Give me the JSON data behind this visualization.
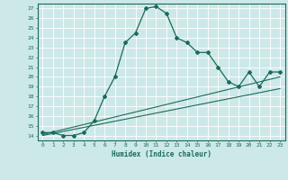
{
  "xlabel": "Humidex (Indice chaleur)",
  "ylabel": "",
  "xlim": [
    -0.5,
    23.5
  ],
  "ylim": [
    13.5,
    27.5
  ],
  "xticks": [
    0,
    1,
    2,
    3,
    4,
    5,
    6,
    7,
    8,
    9,
    10,
    11,
    12,
    13,
    14,
    15,
    16,
    17,
    18,
    19,
    20,
    21,
    22,
    23
  ],
  "yticks": [
    14,
    15,
    16,
    17,
    18,
    19,
    20,
    21,
    22,
    23,
    24,
    25,
    26,
    27
  ],
  "bg_color": "#cde8e8",
  "grid_color": "#ffffff",
  "line_color": "#1a6b5a",
  "main_x": [
    0,
    1,
    2,
    3,
    4,
    5,
    6,
    7,
    8,
    9,
    10,
    11,
    12,
    13,
    14,
    15,
    16,
    17,
    18,
    19,
    20,
    21,
    22,
    23
  ],
  "main_y": [
    14.3,
    14.3,
    14.0,
    14.0,
    14.3,
    15.5,
    18.0,
    20.0,
    23.5,
    24.5,
    27.0,
    27.2,
    26.5,
    24.0,
    23.5,
    22.5,
    22.5,
    21.0,
    19.5,
    19.0,
    20.5,
    19.0,
    20.5,
    20.5
  ],
  "line2_x": [
    0,
    23
  ],
  "line2_y": [
    14.1,
    20.0
  ],
  "line3_x": [
    0,
    23
  ],
  "line3_y": [
    14.0,
    18.8
  ]
}
